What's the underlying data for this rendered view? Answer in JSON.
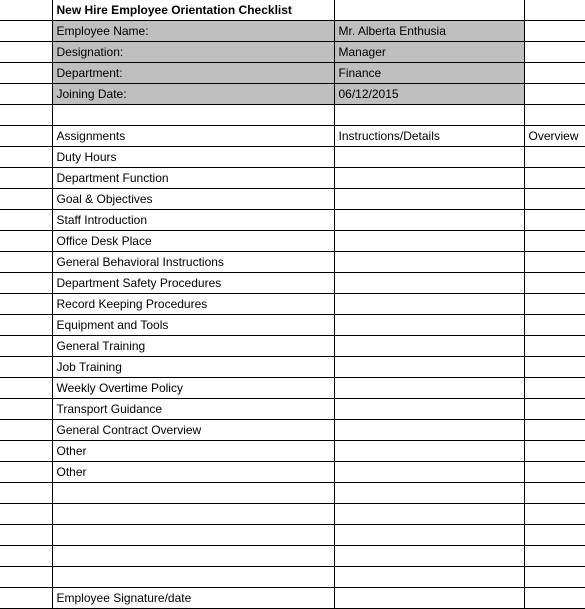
{
  "title": "New Hire Employee Orientation Checklist",
  "info": {
    "employee_name_label": "Employee Name:",
    "employee_name_value": "Mr. Alberta Enthusia",
    "designation_label": "Designation:",
    "designation_value": "Manager",
    "department_label": "Department:",
    "department_value": "Finance",
    "joining_date_label": "Joining Date:",
    "joining_date_value": "06/12/2015"
  },
  "headers": {
    "col1": "Assignments",
    "col2": "Instructions/Details",
    "col3": "Overview"
  },
  "assignments": [
    "Duty Hours",
    "Department Function",
    "Goal & Objectives",
    "Staff Introduction",
    "Office Desk Place",
    "General Behavioral Instructions",
    "Department Safety Procedures",
    "Record Keeping Procedures",
    "Equipment and Tools",
    "General Training",
    "Job Training",
    "Weekly Overtime Policy",
    "Transport Guidance",
    "General Contract Overview",
    "Other",
    "Other"
  ],
  "signature_label": "Employee Signature/date",
  "colors": {
    "grey_fill": "#bfbfbf",
    "border": "#000000",
    "background": "#ffffff"
  }
}
